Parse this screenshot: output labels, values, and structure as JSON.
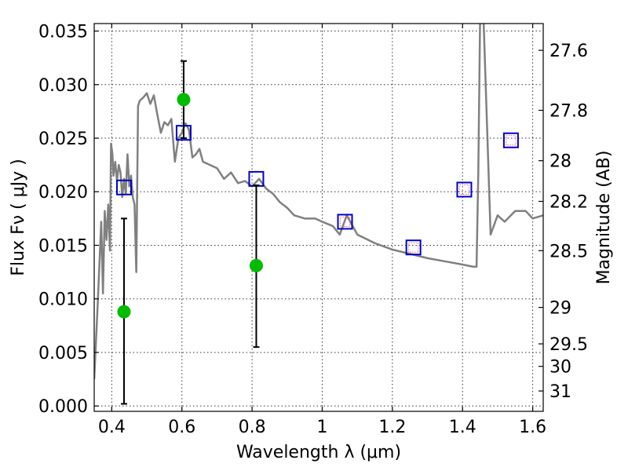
{
  "chart_data": {
    "type": "scatter",
    "title": "",
    "xlabel": "Wavelength  λ (μm)",
    "ylabel": "Flux  Fν  ( μJy )",
    "right_ylabel": "Magnitude (AB)",
    "xlim": [
      0.35,
      1.63
    ],
    "ylim": [
      -0.0005,
      0.0357
    ],
    "grid": true,
    "x_ticks": [
      {
        "value": 0.4,
        "label": "0.4"
      },
      {
        "value": 0.6,
        "label": "0.6"
      },
      {
        "value": 0.8,
        "label": "0.8"
      },
      {
        "value": 1.0,
        "label": "1"
      },
      {
        "value": 1.2,
        "label": "1.2"
      },
      {
        "value": 1.4,
        "label": "1.4"
      },
      {
        "value": 1.6,
        "label": "1.6"
      }
    ],
    "y_ticks": [
      {
        "value": 0.0,
        "label": "0.000"
      },
      {
        "value": 0.005,
        "label": "0.005"
      },
      {
        "value": 0.01,
        "label": "0.010"
      },
      {
        "value": 0.015,
        "label": "0.015"
      },
      {
        "value": 0.02,
        "label": "0.020"
      },
      {
        "value": 0.025,
        "label": "0.025"
      },
      {
        "value": 0.03,
        "label": "0.030"
      },
      {
        "value": 0.035,
        "label": "0.035"
      }
    ],
    "right_y_ticks": [
      {
        "value": 0.0332,
        "label": "27.6"
      },
      {
        "value": 0.0276,
        "label": "27.8"
      },
      {
        "value": 0.0229,
        "label": "28"
      },
      {
        "value": 0.0191,
        "label": "28.2"
      },
      {
        "value": 0.0145,
        "label": "28.5"
      },
      {
        "value": 0.0092,
        "label": "29"
      },
      {
        "value": 0.0058,
        "label": "29.5"
      },
      {
        "value": 0.0037,
        "label": "30"
      },
      {
        "value": 0.0014,
        "label": "31"
      }
    ],
    "series": [
      {
        "kind": "line",
        "color": "#808080",
        "x": [
          0.35,
          0.36,
          0.37,
          0.375,
          0.38,
          0.385,
          0.39,
          0.395,
          0.398,
          0.402,
          0.405,
          0.41,
          0.415,
          0.42,
          0.425,
          0.43,
          0.435,
          0.44,
          0.445,
          0.45,
          0.455,
          0.46,
          0.465,
          0.47,
          0.475,
          0.48,
          0.49,
          0.5,
          0.51,
          0.52,
          0.53,
          0.54,
          0.55,
          0.56,
          0.57,
          0.58,
          0.59,
          0.6,
          0.61,
          0.62,
          0.63,
          0.64,
          0.65,
          0.66,
          0.68,
          0.7,
          0.72,
          0.74,
          0.76,
          0.78,
          0.8,
          0.82,
          0.84,
          0.86,
          0.88,
          0.9,
          0.92,
          0.95,
          0.98,
          1.0,
          1.03,
          1.05,
          1.07,
          1.1,
          1.15,
          1.2,
          1.25,
          1.3,
          1.35,
          1.4,
          1.43,
          1.44,
          1.445,
          1.45,
          1.455,
          1.46,
          1.48,
          1.5,
          1.52,
          1.55,
          1.58,
          1.6,
          1.63
        ],
        "y": [
          0.0025,
          0.0095,
          0.0172,
          0.0105,
          0.0182,
          0.0155,
          0.0188,
          0.0145,
          0.0245,
          0.0235,
          0.0215,
          0.0228,
          0.021,
          0.0225,
          0.0218,
          0.0195,
          0.0212,
          0.0198,
          0.0235,
          0.0205,
          0.0215,
          0.0195,
          0.0188,
          0.0125,
          0.028,
          0.0285,
          0.0288,
          0.0292,
          0.0282,
          0.029,
          0.0272,
          0.0255,
          0.0265,
          0.0262,
          0.0268,
          0.0228,
          0.025,
          0.0255,
          0.0264,
          0.0258,
          0.0232,
          0.0235,
          0.024,
          0.0228,
          0.0225,
          0.0222,
          0.0212,
          0.0218,
          0.0208,
          0.021,
          0.0205,
          0.0212,
          0.0203,
          0.0198,
          0.019,
          0.0185,
          0.0178,
          0.0175,
          0.0175,
          0.0172,
          0.0168,
          0.016,
          0.0178,
          0.016,
          0.0152,
          0.0146,
          0.0142,
          0.0138,
          0.0135,
          0.0132,
          0.013,
          0.013,
          0.022,
          0.036,
          0.036,
          0.036,
          0.016,
          0.0178,
          0.0172,
          0.0182,
          0.0182,
          0.0175,
          0.0178
        ]
      },
      {
        "kind": "open-square",
        "name": "",
        "color": "#0000cc",
        "x": [
          0.435,
          0.605,
          0.812,
          1.065,
          1.26,
          1.405,
          1.538
        ],
        "y": [
          0.0204,
          0.0255,
          0.0212,
          0.0172,
          0.0148,
          0.0202,
          0.0248
        ]
      },
      {
        "kind": "open-square-small",
        "name": "",
        "color": "#ff6666",
        "x": [
          1.065,
          1.26,
          1.405,
          1.538
        ],
        "y": [
          0.0172,
          0.0148,
          0.0202,
          0.0248
        ]
      },
      {
        "kind": "point-errorbar",
        "name": "",
        "color": "#00bb00",
        "x": [
          0.435,
          0.605,
          0.812
        ],
        "y": [
          0.0088,
          0.0286,
          0.0131
        ],
        "yerr_low": [
          0.0086,
          0.0036,
          0.0076
        ],
        "yerr_high": [
          0.0087,
          0.0036,
          0.0075
        ]
      }
    ]
  }
}
